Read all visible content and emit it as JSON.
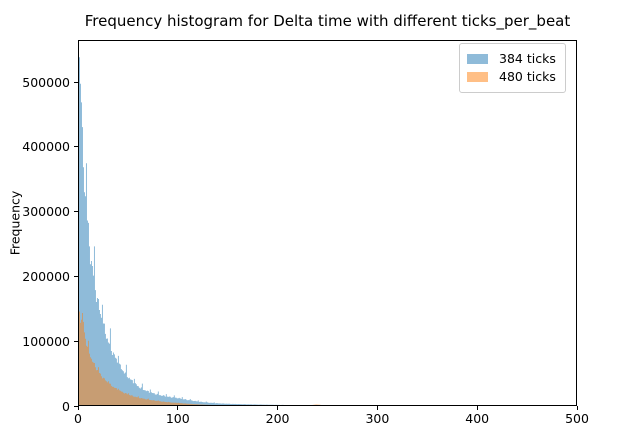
{
  "chart_data": {
    "type": "bar",
    "subtype": "histogram-overlaid",
    "title": "Frequency histogram for Delta time with different ticks_per_beat",
    "xlabel": "",
    "ylabel": "Frequency",
    "xlim": [
      0,
      500
    ],
    "ylim": [
      0,
      565000
    ],
    "xticks": [
      0,
      100,
      200,
      300,
      400,
      500
    ],
    "yticks": [
      0,
      100000,
      200000,
      300000,
      400000,
      500000
    ],
    "grid": false,
    "bin_width": 1,
    "legend": {
      "position": "upper right",
      "items": [
        {
          "label": "384 ticks",
          "color": "rgba(31,119,180,0.5)"
        },
        {
          "label": "480 ticks",
          "color": "rgba(255,127,14,0.5)"
        }
      ]
    },
    "colors": {
      "series_384_blended": "#8fbbd9",
      "series_480_blended": "#ffbf86",
      "overlap_blended": "#c79d74",
      "axes": "#000000",
      "legend_border": "#cccccc"
    },
    "series": [
      {
        "name": "384 ticks",
        "color": "rgba(31,119,180,0.5)",
        "comb_period": 8,
        "comb_boost": 1.25,
        "comb_max_x": 140,
        "jitter": 0.07,
        "envelope": [
          [
            0,
            480000
          ],
          [
            1,
            542000
          ],
          [
            2,
            535000
          ],
          [
            3,
            515000
          ],
          [
            4,
            420000
          ],
          [
            5,
            385000
          ],
          [
            6,
            355000
          ],
          [
            7,
            332000
          ],
          [
            8,
            315000
          ],
          [
            10,
            275000
          ],
          [
            12,
            240000
          ],
          [
            14,
            216000
          ],
          [
            16,
            196000
          ],
          [
            18,
            176000
          ],
          [
            20,
            160000
          ],
          [
            22,
            146000
          ],
          [
            24,
            134000
          ],
          [
            26,
            122000
          ],
          [
            28,
            111000
          ],
          [
            30,
            101000
          ],
          [
            33,
            89000
          ],
          [
            36,
            79000
          ],
          [
            40,
            67000
          ],
          [
            44,
            57000
          ],
          [
            48,
            49000
          ],
          [
            52,
            42000
          ],
          [
            56,
            36000
          ],
          [
            60,
            30500
          ],
          [
            65,
            26000
          ],
          [
            70,
            22500
          ],
          [
            75,
            19800
          ],
          [
            80,
            17600
          ],
          [
            85,
            15900
          ],
          [
            90,
            14400
          ],
          [
            95,
            13300
          ],
          [
            100,
            12300
          ],
          [
            105,
            10800
          ],
          [
            110,
            9300
          ],
          [
            115,
            8100
          ],
          [
            120,
            7000
          ],
          [
            125,
            6100
          ],
          [
            130,
            5300
          ],
          [
            135,
            4700
          ],
          [
            140,
            4200
          ],
          [
            145,
            3800
          ],
          [
            150,
            3500
          ],
          [
            155,
            3250
          ],
          [
            160,
            3000
          ],
          [
            170,
            2600
          ],
          [
            180,
            2300
          ],
          [
            190,
            2000
          ],
          [
            200,
            1750
          ],
          [
            210,
            1500
          ],
          [
            220,
            1250
          ],
          [
            230,
            1000
          ],
          [
            240,
            820
          ],
          [
            250,
            700
          ],
          [
            258,
            600
          ],
          [
            262,
            1400
          ],
          [
            265,
            500
          ],
          [
            270,
            1600
          ],
          [
            273,
            500
          ],
          [
            277,
            1300
          ],
          [
            281,
            600
          ],
          [
            290,
            600
          ],
          [
            300,
            550
          ],
          [
            308,
            500
          ],
          [
            311,
            100
          ],
          [
            312,
            450
          ],
          [
            316,
            400
          ],
          [
            317,
            0
          ],
          [
            500,
            0
          ]
        ]
      },
      {
        "name": "480 ticks",
        "color": "rgba(255,127,14,0.5)",
        "comb_period": 10,
        "comb_boost": 1.12,
        "comb_max_x": 100,
        "jitter": 0.05,
        "envelope": [
          [
            0,
            105000
          ],
          [
            1,
            152000
          ],
          [
            2,
            140000
          ],
          [
            3,
            130000
          ],
          [
            4,
            136000
          ],
          [
            5,
            142000
          ],
          [
            6,
            118000
          ],
          [
            7,
            108000
          ],
          [
            8,
            100000
          ],
          [
            10,
            88000
          ],
          [
            12,
            79000
          ],
          [
            14,
            71000
          ],
          [
            16,
            65000
          ],
          [
            18,
            59000
          ],
          [
            20,
            54000
          ],
          [
            23,
            47500
          ],
          [
            26,
            42000
          ],
          [
            30,
            36000
          ],
          [
            34,
            31000
          ],
          [
            38,
            27000
          ],
          [
            42,
            23500
          ],
          [
            46,
            20500
          ],
          [
            50,
            18000
          ],
          [
            55,
            15300
          ],
          [
            60,
            13000
          ],
          [
            65,
            11500
          ],
          [
            70,
            10000
          ],
          [
            75,
            8800
          ],
          [
            80,
            7700
          ],
          [
            85,
            6700
          ],
          [
            90,
            5900
          ],
          [
            95,
            5200
          ],
          [
            100,
            4700
          ],
          [
            105,
            4100
          ],
          [
            110,
            3500
          ],
          [
            115,
            3000
          ],
          [
            120,
            2600
          ],
          [
            125,
            2200
          ],
          [
            130,
            1800
          ],
          [
            135,
            1500
          ],
          [
            140,
            1300
          ],
          [
            145,
            1100
          ],
          [
            150,
            950
          ],
          [
            160,
            700
          ],
          [
            170,
            520
          ],
          [
            180,
            400
          ],
          [
            190,
            300
          ],
          [
            200,
            230
          ],
          [
            210,
            400
          ],
          [
            216,
            700
          ],
          [
            220,
            800
          ],
          [
            224,
            500
          ],
          [
            228,
            400
          ],
          [
            232,
            900
          ],
          [
            236,
            1800
          ],
          [
            239,
            2400
          ],
          [
            242,
            2000
          ],
          [
            245,
            900
          ],
          [
            248,
            350
          ],
          [
            252,
            100
          ],
          [
            254,
            0
          ],
          [
            500,
            0
          ]
        ]
      }
    ]
  }
}
